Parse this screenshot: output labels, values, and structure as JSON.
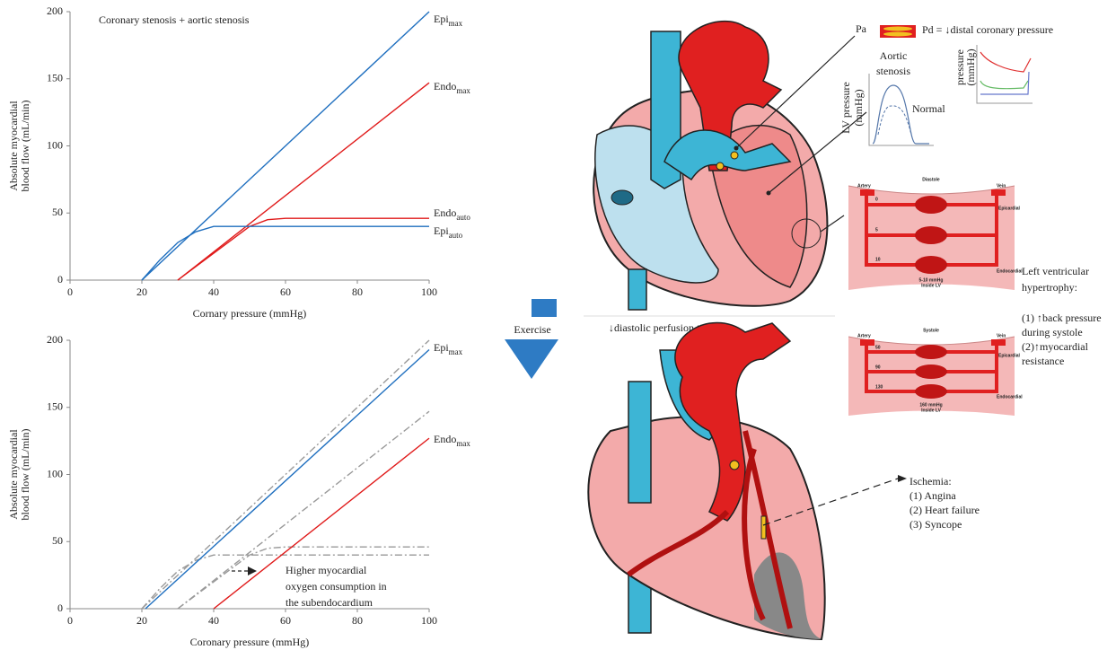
{
  "chart_data": [
    {
      "type": "line",
      "annotation": "Coronary stenosis + aortic stenosis",
      "ylabel": [
        "Absolute myocardial",
        "blood flow (mL/min)"
      ],
      "xlabel": "Cornary pressure (mmHg)",
      "xlim": [
        0,
        100
      ],
      "ylim": [
        0,
        200
      ],
      "xticks": [
        0,
        20,
        40,
        60,
        80,
        100
      ],
      "yticks": [
        0,
        50,
        100,
        150,
        200
      ],
      "series": [
        {
          "name": "Epi",
          "subscript": "max",
          "color": "#1f6fbf",
          "x": [
            20,
            100
          ],
          "values": [
            0,
            200
          ]
        },
        {
          "name": "Endo",
          "subscript": "max",
          "color": "#e01a1a",
          "x": [
            30,
            100
          ],
          "values": [
            0,
            147
          ]
        },
        {
          "name": "Endo",
          "subscript": "auto",
          "color": "#e01a1a",
          "x": [
            30,
            40,
            50,
            55,
            60,
            100
          ],
          "values": [
            0,
            20,
            40,
            45,
            46,
            46
          ]
        },
        {
          "name": "Epi",
          "subscript": "auto",
          "color": "#1f6fbf",
          "x": [
            20,
            25,
            30,
            35,
            40,
            50,
            100
          ],
          "values": [
            0,
            15,
            28,
            36,
            40,
            40,
            40
          ]
        }
      ]
    },
    {
      "type": "line",
      "annotation": [
        "Higher myocardial",
        "oxygen consumption in",
        "the subendocardium"
      ],
      "ylabel": [
        "Absolute myocardial",
        "blood flow (mL/min)"
      ],
      "xlabel": "Coronary pressure (mmHg)",
      "xlim": [
        0,
        100
      ],
      "ylim": [
        0,
        200
      ],
      "xticks": [
        0,
        20,
        40,
        60,
        80,
        100
      ],
      "yticks": [
        0,
        50,
        100,
        150,
        200
      ],
      "series": [
        {
          "color": "#9a9a9a",
          "dash": "dash-dot",
          "x": [
            20,
            100
          ],
          "values": [
            0,
            200
          ]
        },
        {
          "color": "#9a9a9a",
          "dash": "dash-dot",
          "x": [
            30,
            100
          ],
          "values": [
            0,
            147
          ]
        },
        {
          "color": "#9a9a9a",
          "dash": "dash-dot",
          "x": [
            30,
            40,
            50,
            55,
            60,
            100
          ],
          "values": [
            0,
            20,
            40,
            45,
            46,
            46
          ]
        },
        {
          "color": "#9a9a9a",
          "dash": "dash-dot",
          "x": [
            20,
            25,
            30,
            35,
            40,
            50,
            100
          ],
          "values": [
            0,
            15,
            28,
            36,
            40,
            40,
            40
          ]
        },
        {
          "name": "Epi",
          "subscript": "max",
          "color": "#1f6fbf",
          "x": [
            21,
            100
          ],
          "values": [
            0,
            193
          ]
        },
        {
          "name": "Endo",
          "subscript": "max",
          "color": "#e01a1a",
          "x": [
            40,
            100
          ],
          "values": [
            0,
            127
          ]
        }
      ]
    }
  ],
  "diagram": {
    "exercise": "Exercise",
    "pa": "Pa",
    "pd": "Pd = ↓distal coronary pressure",
    "aortic_stenosis": [
      "Aortic",
      "stenosis"
    ],
    "normal": "Normal",
    "lv_pressure": [
      "LV pressure",
      "(mmHg)"
    ],
    "pressure": [
      "pressure",
      "(mmHg)"
    ],
    "diastole": {
      "title": "Diastole",
      "artery": "Artery",
      "vein": "Vein",
      "epicardial": "Epicardial",
      "endocardial": "Endocardial",
      "levels": [
        "0",
        "5",
        "10"
      ],
      "inside": [
        "5-10 mmHg",
        "Inside LV"
      ]
    },
    "systole": {
      "title": "Systole",
      "artery": "Artery",
      "vein": "Vein",
      "epicardial": "Epicardial",
      "endocardial": "Endocardial",
      "levels": [
        "50",
        "90",
        "130"
      ],
      "inside": [
        "160 mmHg",
        "Inside LV"
      ]
    },
    "hypertrophy": [
      "Left ventricular",
      "hypertrophy:"
    ],
    "hypertrophy_items": [
      "(1) ↑back pressure",
      "during systole",
      "(2)↑myocardial",
      "resistance"
    ],
    "perfusion": "↓diastolic perfusion time",
    "ischemia": [
      "Ischemia:",
      "(1) Angina",
      "(2) Heart failure",
      "(3) Syncope"
    ]
  }
}
